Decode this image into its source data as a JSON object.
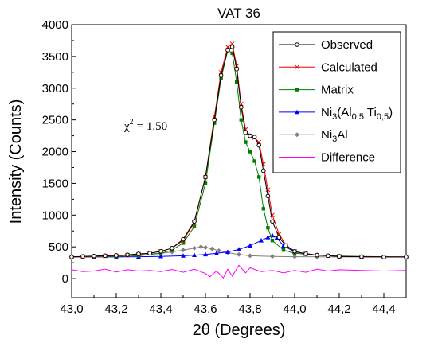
{
  "chart_data": {
    "type": "line",
    "title": "VAT 36",
    "xlabel": "2θ (Degrees)",
    "ylabel": "Intensity (Counts)",
    "xlim": [
      43.0,
      44.5
    ],
    "ylim": [
      -300,
      4000
    ],
    "x_ticks": [
      43.0,
      43.2,
      43.4,
      43.6,
      43.8,
      44.0,
      44.2,
      44.4
    ],
    "x_tick_labels": [
      "43,0",
      "43,2",
      "43,4",
      "43,6",
      "43,8",
      "44,0",
      "44,2",
      "44,4"
    ],
    "y_ticks": [
      0,
      500,
      1000,
      1500,
      2000,
      2500,
      3000,
      3500,
      4000
    ],
    "y_tick_labels": [
      "0",
      "500",
      "1000",
      "1500",
      "2000",
      "2500",
      "3000",
      "3500",
      "4000"
    ],
    "grid": false,
    "legend_position": "top-right",
    "annotation": {
      "symbol": "χ",
      "power": "2",
      "value": "= 1.50"
    },
    "series": [
      {
        "key": "observed",
        "name": "Observed",
        "legend_label": {
          "main": "Observed"
        },
        "color": "#000000",
        "marker": "open-circle",
        "x": [
          43.0,
          43.05,
          43.1,
          43.15,
          43.2,
          43.25,
          43.3,
          43.35,
          43.4,
          43.45,
          43.5,
          43.55,
          43.6,
          43.64,
          43.67,
          43.7,
          43.72,
          43.74,
          43.76,
          43.78,
          43.8,
          43.82,
          43.84,
          43.86,
          43.88,
          43.9,
          43.93,
          43.96,
          44.0,
          44.05,
          44.1,
          44.15,
          44.2,
          44.3,
          44.4,
          44.5
        ],
        "y": [
          340,
          350,
          355,
          360,
          365,
          375,
          390,
          400,
          430,
          480,
          620,
          900,
          1600,
          2500,
          3200,
          3600,
          3650,
          3300,
          2700,
          2300,
          2250,
          2230,
          2100,
          1700,
          1300,
          900,
          650,
          520,
          430,
          390,
          370,
          360,
          350,
          345,
          340,
          340
        ]
      },
      {
        "key": "calculated",
        "name": "Calculated",
        "legend_label": {
          "main": "Calculated"
        },
        "color": "#ff0000",
        "marker": "x",
        "x": [
          43.0,
          43.05,
          43.1,
          43.15,
          43.2,
          43.25,
          43.3,
          43.35,
          43.4,
          43.45,
          43.5,
          43.55,
          43.6,
          43.64,
          43.67,
          43.7,
          43.72,
          43.74,
          43.76,
          43.78,
          43.8,
          43.82,
          43.84,
          43.86,
          43.88,
          43.9,
          43.93,
          43.96,
          44.0,
          44.05,
          44.1,
          44.15,
          44.2,
          44.3,
          44.4,
          44.5
        ],
        "y": [
          340,
          345,
          350,
          355,
          360,
          370,
          385,
          400,
          430,
          480,
          600,
          880,
          1600,
          2550,
          3250,
          3650,
          3700,
          3350,
          2750,
          2350,
          2250,
          2220,
          2150,
          1800,
          1400,
          1000,
          700,
          530,
          430,
          390,
          370,
          360,
          350,
          345,
          340,
          340
        ]
      },
      {
        "key": "matrix",
        "name": "Matrix",
        "legend_label": {
          "main": "Matrix"
        },
        "color": "#008000",
        "marker": "filled-square",
        "x": [
          43.0,
          43.1,
          43.2,
          43.3,
          43.4,
          43.45,
          43.5,
          43.55,
          43.6,
          43.64,
          43.67,
          43.7,
          43.72,
          43.74,
          43.76,
          43.78,
          43.8,
          43.82,
          43.84,
          43.86,
          43.88,
          43.9,
          43.95,
          44.0,
          44.1,
          44.2,
          44.3,
          44.4,
          44.5
        ],
        "y": [
          340,
          345,
          350,
          360,
          400,
          450,
          560,
          820,
          1500,
          2450,
          3150,
          3600,
          3550,
          3100,
          2500,
          2150,
          2000,
          1850,
          1600,
          1100,
          800,
          600,
          450,
          400,
          370,
          355,
          350,
          345,
          340
        ]
      },
      {
        "key": "ni3alti",
        "name": "Ni3(Al0,5 Ti0,5)",
        "legend_label": {
          "pre": "Ni",
          "sub1": "3",
          "mid": "(Al",
          "sub2": "0,5",
          "mid2": " Ti",
          "sub3": "0,5",
          "post": ")"
        },
        "color": "#0000ff",
        "marker": "filled-triangle",
        "x": [
          43.0,
          43.1,
          43.2,
          43.3,
          43.4,
          43.5,
          43.55,
          43.6,
          43.65,
          43.7,
          43.75,
          43.8,
          43.85,
          43.88,
          43.9,
          43.92,
          43.95,
          44.0,
          44.1,
          44.2,
          44.3,
          44.4,
          44.5
        ],
        "y": [
          340,
          340,
          340,
          345,
          350,
          360,
          370,
          380,
          400,
          420,
          460,
          520,
          600,
          650,
          680,
          640,
          520,
          420,
          370,
          355,
          345,
          340,
          340
        ]
      },
      {
        "key": "ni3al",
        "name": "Ni3Al",
        "legend_label": {
          "pre": "Ni",
          "sub1": "3",
          "post": "Al"
        },
        "color": "#808080",
        "marker": "filled-diamond",
        "x": [
          43.0,
          43.1,
          43.2,
          43.3,
          43.4,
          43.45,
          43.5,
          43.55,
          43.58,
          43.6,
          43.63,
          43.66,
          43.7,
          43.75,
          43.8,
          43.9,
          44.0,
          44.1,
          44.2,
          44.3,
          44.4,
          44.5
        ],
        "y": [
          345,
          355,
          365,
          380,
          400,
          420,
          450,
          480,
          500,
          490,
          470,
          440,
          410,
          380,
          360,
          350,
          345,
          342,
          340,
          340,
          340,
          340
        ]
      },
      {
        "key": "difference",
        "name": "Difference",
        "legend_label": {
          "main": "Difference"
        },
        "color": "#ff00ff",
        "marker": "none",
        "x": [
          43.0,
          43.05,
          43.1,
          43.15,
          43.2,
          43.25,
          43.3,
          43.35,
          43.4,
          43.45,
          43.5,
          43.55,
          43.6,
          43.62,
          43.65,
          43.68,
          43.7,
          43.72,
          43.75,
          43.78,
          43.8,
          43.85,
          43.9,
          43.95,
          44.0,
          44.05,
          44.1,
          44.15,
          44.2,
          44.3,
          44.4,
          44.5
        ],
        "y": [
          140,
          110,
          120,
          150,
          105,
          140,
          120,
          130,
          110,
          145,
          100,
          150,
          80,
          30,
          120,
          10,
          150,
          40,
          210,
          90,
          170,
          110,
          130,
          90,
          130,
          100,
          150,
          120,
          140,
          130,
          120,
          130
        ]
      }
    ]
  }
}
